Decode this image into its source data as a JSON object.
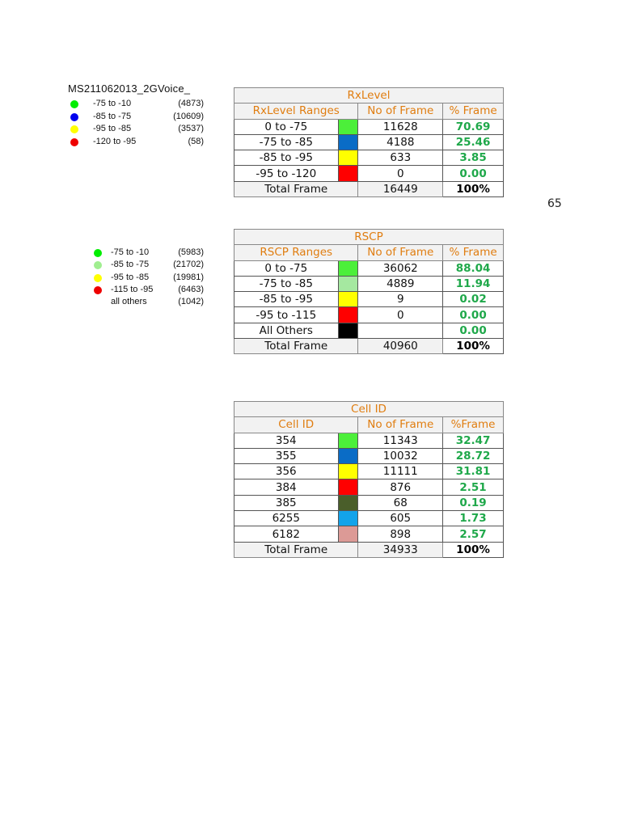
{
  "rx_legend": {
    "title": "MS211062013_2GVoice_",
    "items": [
      {
        "range": "-75 to -10",
        "count": "(4873)",
        "color": "#00ee00"
      },
      {
        "range": "-85 to -75",
        "count": "(10609)",
        "color": "#0000ee"
      },
      {
        "range": "-95 to -85",
        "count": "(3537)",
        "color": "#ffff00"
      },
      {
        "range": "-120 to -95",
        "count": "(58)",
        "color": "#ee0000"
      }
    ]
  },
  "rscp_legend": {
    "items": [
      {
        "range": "-75 to -10",
        "count": "(5983)",
        "color": "#00ee00"
      },
      {
        "range": "-85 to -75",
        "count": "(21702)",
        "color": "#a0ee90"
      },
      {
        "range": "-95 to -85",
        "count": "(19981)",
        "color": "#ffff00"
      },
      {
        "range": "-115 to -95",
        "count": "(6463)",
        "color": "#ee0000"
      },
      {
        "range": "all others",
        "count": "(1042)",
        "color": "#ffffff"
      }
    ]
  },
  "page_number": "65",
  "rxlevel_table": {
    "title": "RxLevel",
    "headers": {
      "range": "RxLevel Ranges",
      "frames": "No of Frame",
      "pct": "% Frame"
    },
    "rows": [
      {
        "label": "0 to -75",
        "color": "#4cef3a",
        "frames": "11628",
        "pct": "70.69"
      },
      {
        "label": "-75 to -85",
        "color": "#0a6cc6",
        "frames": "4188",
        "pct": "25.46"
      },
      {
        "label": "-85 to -95",
        "color": "#ffff00",
        "frames": "633",
        "pct": "3.85"
      },
      {
        "label": "-95 to -120",
        "color": "#ff0000",
        "frames": "0",
        "pct": "0.00"
      }
    ],
    "total": {
      "label": "Total Frame",
      "frames": "16449",
      "pct": "100%"
    }
  },
  "rscp_table": {
    "title": "RSCP",
    "headers": {
      "range": "RSCP Ranges",
      "frames": "No of Frame",
      "pct": "% Frame"
    },
    "rows": [
      {
        "label": "0 to -75",
        "color": "#4cef3a",
        "frames": "36062",
        "pct": "88.04"
      },
      {
        "label": "-75 to -85",
        "color": "#a5e8a0",
        "frames": "4889",
        "pct": "11.94"
      },
      {
        "label": "-85 to -95",
        "color": "#ffff00",
        "frames": "9",
        "pct": "0.02"
      },
      {
        "label": "-95 to -115",
        "color": "#ff0000",
        "frames": "0",
        "pct": "0.00"
      },
      {
        "label": "All Others",
        "color": "#000000",
        "frames": "",
        "pct": "0.00"
      }
    ],
    "total": {
      "label": "Total Frame",
      "frames": "40960",
      "pct": "100%"
    }
  },
  "cellid_table": {
    "title": "Cell ID",
    "headers": {
      "range": "Cell ID",
      "frames": "No of Frame",
      "pct": "%Frame"
    },
    "rows": [
      {
        "label": "354",
        "color": "#4cef3a",
        "frames": "11343",
        "pct": "32.47"
      },
      {
        "label": "355",
        "color": "#0a6cc6",
        "frames": "10032",
        "pct": "28.72"
      },
      {
        "label": "356",
        "color": "#ffff00",
        "frames": "11111",
        "pct": "31.81"
      },
      {
        "label": "384",
        "color": "#ff0000",
        "frames": "876",
        "pct": "2.51"
      },
      {
        "label": "385",
        "color": "#4a5e2a",
        "frames": "68",
        "pct": "0.19"
      },
      {
        "label": "6255",
        "color": "#13a3ea",
        "frames": "605",
        "pct": "1.73"
      },
      {
        "label": "6182",
        "color": "#dc9a96",
        "frames": "898",
        "pct": "2.57"
      }
    ],
    "total": {
      "label": "Total Frame",
      "frames": "34933",
      "pct": "100%"
    }
  }
}
